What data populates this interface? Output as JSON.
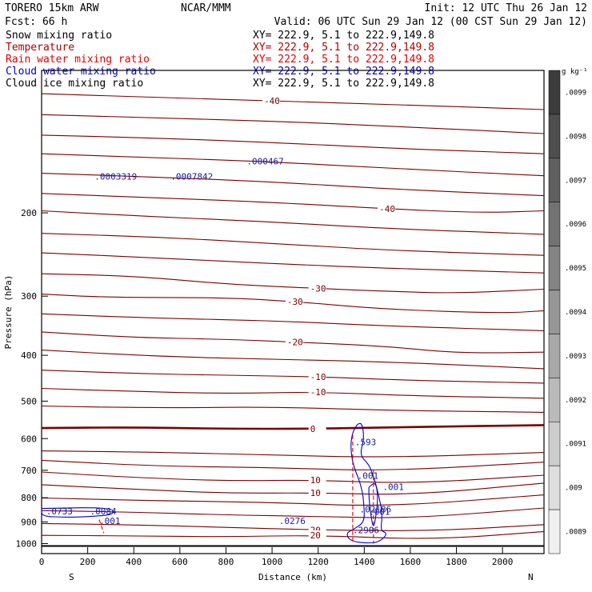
{
  "header": {
    "model": "TORERO  15km ARW",
    "org": "NCAR/MMM",
    "init": "Init: 12 UTC Thu 26 Jan 12",
    "fcst": "Fcst:   66 h",
    "valid": "Valid: 06 UTC Sun 29 Jan 12 (00 CST Sun 29 Jan 12)"
  },
  "fields": [
    {
      "name": "Snow mixing ratio",
      "xy": "",
      "color": "#000000"
    },
    {
      "name": "Temperature",
      "xy": "XY= 222.9,  5.1 to 222.9,149.8",
      "color": "#b00000"
    },
    {
      "name": "Rain water mixing ratio",
      "xy": "XY= 222.9,  5.1 to 222.9,149.8",
      "color": "#e00000"
    },
    {
      "name": "Cloud water mixing ratio",
      "xy": "XY= 222.9,  5.1 to 222.9,149.8",
      "color": "#0000cc"
    },
    {
      "name": "Cloud ice mixing ratio",
      "xy": "XY= 222.9,  5.1 to 222.9,149.8",
      "color": "#000000"
    }
  ],
  "first_xy": "XY= 222.9,  5.1 to 222.9,149.8",
  "footer": {
    "left": "S",
    "right": "N"
  },
  "colors": {
    "temperature": "#7a0000",
    "rain": "#e00000",
    "cloud_water": "#0000cc",
    "axis": "#000000"
  },
  "chart_data": {
    "type": "contour",
    "xlabel": "Distance (km)",
    "ylabel": "Pressure (hPa)",
    "xlim": [
      0,
      2180
    ],
    "ylim": [
      1050,
      100
    ],
    "y_scale": "log",
    "xticks": [
      0,
      200,
      400,
      600,
      800,
      1000,
      1200,
      1400,
      1600,
      1800,
      2000
    ],
    "yticks": [
      200,
      300,
      400,
      500,
      600,
      700,
      800,
      900,
      1000
    ],
    "colorbar": {
      "unit": "g kg⁻¹",
      "labels": [
        ".0099",
        ".0098",
        ".0097",
        ".0096",
        ".0095",
        ".0094",
        ".0093",
        ".0092",
        ".0091",
        ".009",
        ".0089"
      ]
    },
    "temperature_contours": [
      {
        "label": "-40",
        "points": [
          [
            0,
            112
          ],
          [
            500,
            114
          ],
          [
            1000,
            116
          ],
          [
            1500,
            118
          ],
          [
            2180,
            121
          ]
        ]
      },
      {
        "label": "",
        "points": [
          [
            0,
            124
          ],
          [
            500,
            126
          ],
          [
            1000,
            128
          ],
          [
            1500,
            131
          ],
          [
            2180,
            136
          ]
        ]
      },
      {
        "label": "",
        "points": [
          [
            0,
            137
          ],
          [
            500,
            139
          ],
          [
            1000,
            142
          ],
          [
            1500,
            146
          ],
          [
            2180,
            150
          ]
        ]
      },
      {
        "label": "",
        "points": [
          [
            0,
            150
          ],
          [
            500,
            153
          ],
          [
            1000,
            156
          ],
          [
            1500,
            161
          ],
          [
            2180,
            167
          ]
        ]
      },
      {
        "label": "",
        "points": [
          [
            0,
            165
          ],
          [
            500,
            168
          ],
          [
            1000,
            172
          ],
          [
            1500,
            178
          ],
          [
            2180,
            184
          ]
        ]
      },
      {
        "label": "-40",
        "points": [
          [
            0,
            182
          ],
          [
            500,
            186
          ],
          [
            1000,
            190
          ],
          [
            1500,
            196
          ],
          [
            1900,
            200
          ],
          [
            2180,
            198
          ]
        ]
      },
      {
        "label": "",
        "points": [
          [
            0,
            198
          ],
          [
            500,
            204
          ],
          [
            1000,
            209
          ],
          [
            1500,
            216
          ],
          [
            2180,
            222
          ]
        ]
      },
      {
        "label": "",
        "points": [
          [
            0,
            221
          ],
          [
            500,
            225
          ],
          [
            1000,
            232
          ],
          [
            1500,
            240
          ],
          [
            2180,
            246
          ]
        ]
      },
      {
        "label": "",
        "points": [
          [
            0,
            243
          ],
          [
            500,
            249
          ],
          [
            1000,
            256
          ],
          [
            1500,
            262
          ],
          [
            2180,
            268
          ]
        ]
      },
      {
        "label": "-30",
        "points": [
          [
            0,
            269
          ],
          [
            400,
            272
          ],
          [
            800,
            283
          ],
          [
            1200,
            289
          ],
          [
            1500,
            293
          ],
          [
            1800,
            296
          ],
          [
            2180,
            290
          ]
        ]
      },
      {
        "label": "-30",
        "points": [
          [
            0,
            297
          ],
          [
            300,
            302
          ],
          [
            800,
            302
          ],
          [
            1100,
            308
          ],
          [
            1500,
            320
          ],
          [
            2000,
            326
          ],
          [
            2180,
            322
          ]
        ]
      },
      {
        "label": "",
        "points": [
          [
            0,
            327
          ],
          [
            500,
            334
          ],
          [
            1000,
            338
          ],
          [
            1500,
            347
          ],
          [
            2180,
            355
          ]
        ]
      },
      {
        "label": "-20",
        "points": [
          [
            0,
            357
          ],
          [
            400,
            367
          ],
          [
            800,
            370
          ],
          [
            1100,
            375
          ],
          [
            1500,
            383
          ],
          [
            1800,
            396
          ],
          [
            2180,
            394
          ]
        ]
      },
      {
        "label": "",
        "points": [
          [
            0,
            390
          ],
          [
            500,
            402
          ],
          [
            1000,
            408
          ],
          [
            1500,
            413
          ],
          [
            2180,
            427
          ]
        ]
      },
      {
        "label": "-10",
        "points": [
          [
            0,
            430
          ],
          [
            400,
            437
          ],
          [
            800,
            441
          ],
          [
            1200,
            444
          ],
          [
            1600,
            452
          ],
          [
            2180,
            458
          ]
        ]
      },
      {
        "label": "-10",
        "points": [
          [
            0,
            470
          ],
          [
            400,
            477
          ],
          [
            800,
            482
          ],
          [
            1200,
            478
          ],
          [
            1600,
            487
          ],
          [
            2180,
            493
          ]
        ]
      },
      {
        "label": "",
        "points": [
          [
            0,
            512
          ],
          [
            500,
            517
          ],
          [
            1000,
            514
          ],
          [
            1500,
            523
          ],
          [
            2180,
            528
          ]
        ]
      },
      {
        "label": "0",
        "points": [
          [
            0,
            570
          ],
          [
            400,
            568
          ],
          [
            800,
            572
          ],
          [
            1200,
            572
          ],
          [
            1600,
            567
          ],
          [
            2180,
            562
          ]
        ],
        "bold": true
      },
      {
        "label": "",
        "points": [
          [
            0,
            637
          ],
          [
            500,
            641
          ],
          [
            1000,
            650
          ],
          [
            1500,
            658
          ],
          [
            2180,
            642
          ]
        ]
      },
      {
        "label": "",
        "points": [
          [
            0,
            667
          ],
          [
            500,
            686
          ],
          [
            1000,
            691
          ],
          [
            1500,
            703
          ],
          [
            2180,
            673
          ]
        ]
      },
      {
        "label": "10",
        "points": [
          [
            0,
            706
          ],
          [
            400,
            725
          ],
          [
            800,
            737
          ],
          [
            1200,
            734
          ],
          [
            1600,
            747
          ],
          [
            2180,
            717
          ]
        ]
      },
      {
        "label": "10",
        "points": [
          [
            0,
            751
          ],
          [
            400,
            768
          ],
          [
            800,
            783
          ],
          [
            1200,
            781
          ],
          [
            1600,
            790
          ],
          [
            2180,
            745
          ]
        ]
      },
      {
        "label": "",
        "points": [
          [
            0,
            801
          ],
          [
            500,
            812
          ],
          [
            1000,
            818
          ],
          [
            1500,
            836
          ],
          [
            2180,
            789
          ]
        ]
      },
      {
        "label": "",
        "points": [
          [
            0,
            852
          ],
          [
            400,
            858
          ],
          [
            800,
            870
          ],
          [
            1200,
            876
          ],
          [
            1600,
            885
          ],
          [
            2180,
            841
          ]
        ]
      },
      {
        "label": "20",
        "points": [
          [
            0,
            907
          ],
          [
            400,
            913
          ],
          [
            800,
            924
          ],
          [
            1200,
            936
          ],
          [
            1700,
            941
          ],
          [
            2180,
            912
          ]
        ]
      },
      {
        "label": "20",
        "points": [
          [
            0,
            961
          ],
          [
            400,
            963
          ],
          [
            800,
            968
          ],
          [
            1200,
            960
          ],
          [
            1700,
            982
          ],
          [
            2180,
            943
          ]
        ]
      }
    ],
    "cloud_water_contours": [
      {
        "points": [
          [
            1370,
            560
          ],
          [
            1390,
            555
          ],
          [
            1400,
            600
          ],
          [
            1380,
            650
          ],
          [
            1420,
            680
          ],
          [
            1440,
            720
          ],
          [
            1460,
            780
          ],
          [
            1480,
            870
          ],
          [
            1470,
            940
          ],
          [
            1500,
            950
          ],
          [
            1480,
            980
          ],
          [
            1440,
            1000
          ],
          [
            1340,
            990
          ],
          [
            1320,
            950
          ],
          [
            1360,
            930
          ],
          [
            1400,
            900
          ],
          [
            1400,
            840
          ],
          [
            1390,
            760
          ],
          [
            1350,
            680
          ],
          [
            1340,
            620
          ],
          [
            1350,
            580
          ],
          [
            1370,
            560
          ]
        ]
      },
      {
        "points": [
          [
            1420,
            760
          ],
          [
            1450,
            740
          ],
          [
            1460,
            800
          ],
          [
            1450,
            880
          ],
          [
            1440,
            930
          ],
          [
            1430,
            880
          ],
          [
            1420,
            800
          ],
          [
            1420,
            760
          ]
        ]
      },
      {
        "points": [
          [
            0,
            843
          ],
          [
            300,
            838
          ],
          [
            320,
            868
          ],
          [
            200,
            878
          ],
          [
            100,
            880
          ],
          [
            0,
            876
          ],
          [
            0,
            843
          ]
        ]
      }
    ],
    "rain_contours": [
      {
        "points": [
          [
            1350,
            590
          ],
          [
            1350,
            1000
          ]
        ]
      },
      {
        "points": [
          [
            1440,
            700
          ],
          [
            1440,
            1000
          ]
        ]
      },
      {
        "points": [
          [
            250,
            890
          ],
          [
            270,
            950
          ]
        ]
      }
    ],
    "annotations": [
      {
        "text": ".0003319",
        "x": 230,
        "y": 170
      },
      {
        "text": ".0007842",
        "x": 560,
        "y": 170
      },
      {
        "text": ".000467",
        "x": 890,
        "y": 158
      },
      {
        "text": ".593",
        "x": 1360,
        "y": 620
      },
      {
        "text": ".001",
        "x": 1370,
        "y": 730
      },
      {
        "text": ".001",
        "x": 1480,
        "y": 770
      },
      {
        "text": ".02186",
        "x": 1380,
        "y": 860
      },
      {
        "text": ".001",
        "x": 1420,
        "y": 870
      },
      {
        "text": ".0276",
        "x": 1030,
        "y": 910
      },
      {
        "text": ".2906",
        "x": 1350,
        "y": 950
      },
      {
        "text": ".001",
        "x": 250,
        "y": 910
      },
      {
        "text": ".0733",
        "x": 20,
        "y": 868
      },
      {
        "text": ".0084",
        "x": 210,
        "y": 868
      }
    ]
  }
}
